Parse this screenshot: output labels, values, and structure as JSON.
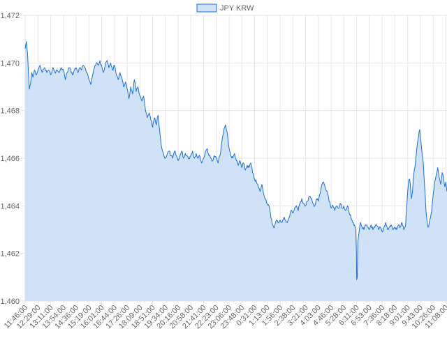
{
  "chart_data": {
    "type": "area",
    "series": [
      {
        "name": "JPY KRW",
        "fill_color": "#cfe2f6",
        "line_color": "#1e6fd0",
        "anchors": [
          [
            "11:46:00",
            1470.6
          ],
          [
            "11:50:00",
            1470.9
          ],
          [
            "11:54:00",
            1470.4
          ],
          [
            "11:57:00",
            1469.6
          ],
          [
            "12:00:00",
            1468.9
          ],
          [
            "12:04:00",
            1469.1
          ],
          [
            "12:08:00",
            1469.6
          ],
          [
            "12:12:00",
            1469.4
          ],
          [
            "12:17:00",
            1469.7
          ],
          [
            "12:22:00",
            1469.5
          ],
          [
            "12:29:00",
            1469.7
          ],
          [
            "12:36:00",
            1469.9
          ],
          [
            "12:43:00",
            1469.6
          ],
          [
            "12:50:00",
            1469.8
          ],
          [
            "12:58:00",
            1469.6
          ],
          [
            "13:04:00",
            1469.7
          ],
          [
            "13:11:00",
            1469.5
          ],
          [
            "13:18:00",
            1469.8
          ],
          [
            "13:25:00",
            1469.6
          ],
          [
            "13:32:00",
            1469.7
          ],
          [
            "13:40:00",
            1469.6
          ],
          [
            "13:47:00",
            1469.8
          ],
          [
            "13:54:00",
            1469.7
          ],
          [
            "14:00:00",
            1469.3
          ],
          [
            "14:06:00",
            1469.6
          ],
          [
            "14:12:00",
            1469.8
          ],
          [
            "14:18:00",
            1469.7
          ],
          [
            "14:24:00",
            1469.5
          ],
          [
            "14:30:00",
            1469.7
          ],
          [
            "14:36:00",
            1469.8
          ],
          [
            "14:42:00",
            1469.6
          ],
          [
            "14:48:00",
            1469.8
          ],
          [
            "14:54:00",
            1469.7
          ],
          [
            "15:00:00",
            1469.9
          ],
          [
            "15:06:00",
            1469.8
          ],
          [
            "15:12:00",
            1469.6
          ],
          [
            "15:19:00",
            1469.3
          ],
          [
            "15:25:00",
            1469.1
          ],
          [
            "15:31:00",
            1469.5
          ],
          [
            "15:37:00",
            1469.8
          ],
          [
            "15:43:00",
            1470.0
          ],
          [
            "15:49:00",
            1469.9
          ],
          [
            "15:55:00",
            1470.1
          ],
          [
            "16:01:00",
            1469.9
          ],
          [
            "16:07:00",
            1469.6
          ],
          [
            "16:13:00",
            1469.9
          ],
          [
            "16:19:00",
            1470.1
          ],
          [
            "16:25:00",
            1469.8
          ],
          [
            "16:31:00",
            1470.0
          ],
          [
            "16:37:00",
            1469.7
          ],
          [
            "16:44:00",
            1469.9
          ],
          [
            "16:50:00",
            1469.5
          ],
          [
            "16:56:00",
            1469.3
          ],
          [
            "17:02:00",
            1469.6
          ],
          [
            "17:08:00",
            1469.4
          ],
          [
            "17:14:00",
            1469.0
          ],
          [
            "17:20:00",
            1469.2
          ],
          [
            "17:26:00",
            1468.9
          ],
          [
            "17:32:00",
            1468.5
          ],
          [
            "17:38:00",
            1469.0
          ],
          [
            "17:44:00",
            1468.7
          ],
          [
            "17:50:00",
            1469.3
          ],
          [
            "17:56:00",
            1468.8
          ],
          [
            "18:02:00",
            1469.0
          ],
          [
            "18:09:00",
            1468.6
          ],
          [
            "18:15:00",
            1468.4
          ],
          [
            "18:21:00",
            1468.6
          ],
          [
            "18:27:00",
            1468.0
          ],
          [
            "18:33:00",
            1467.7
          ],
          [
            "18:39:00",
            1467.9
          ],
          [
            "18:45:00",
            1467.6
          ],
          [
            "18:51:00",
            1467.3
          ],
          [
            "18:57:00",
            1467.7
          ],
          [
            "19:03:00",
            1467.4
          ],
          [
            "19:09:00",
            1467.8
          ],
          [
            "19:14:00",
            1467.2
          ],
          [
            "19:19:00",
            1466.6
          ],
          [
            "19:24:00",
            1466.3
          ],
          [
            "19:29:00",
            1466.1
          ],
          [
            "19:34:00",
            1466.0
          ],
          [
            "19:40:00",
            1466.2
          ],
          [
            "19:46:00",
            1466.3
          ],
          [
            "19:52:00",
            1466.1
          ],
          [
            "19:58:00",
            1466.0
          ],
          [
            "20:04:00",
            1466.3
          ],
          [
            "20:10:00",
            1466.1
          ],
          [
            "20:16:00",
            1465.9
          ],
          [
            "20:22:00",
            1466.1
          ],
          [
            "20:28:00",
            1466.3
          ],
          [
            "20:34:00",
            1466.0
          ],
          [
            "20:40:00",
            1466.2
          ],
          [
            "20:46:00",
            1466.1
          ],
          [
            "20:52:00",
            1466.0
          ],
          [
            "20:58:00",
            1466.1
          ],
          [
            "21:04:00",
            1466.3
          ],
          [
            "21:10:00",
            1466.0
          ],
          [
            "21:16:00",
            1466.2
          ],
          [
            "21:22:00",
            1466.0
          ],
          [
            "21:28:00",
            1466.1
          ],
          [
            "21:34:00",
            1465.8
          ],
          [
            "21:41:00",
            1466.0
          ],
          [
            "21:47:00",
            1466.3
          ],
          [
            "21:53:00",
            1466.4
          ],
          [
            "21:59:00",
            1466.1
          ],
          [
            "22:05:00",
            1466.0
          ],
          [
            "22:11:00",
            1465.9
          ],
          [
            "22:17:00",
            1466.1
          ],
          [
            "22:23:00",
            1466.0
          ],
          [
            "22:29:00",
            1465.8
          ],
          [
            "22:35:00",
            1466.1
          ],
          [
            "22:41:00",
            1466.6
          ],
          [
            "22:47:00",
            1467.1
          ],
          [
            "22:53:00",
            1467.4
          ],
          [
            "22:59:00",
            1467.1
          ],
          [
            "23:06:00",
            1466.4
          ],
          [
            "23:12:00",
            1466.1
          ],
          [
            "23:18:00",
            1466.0
          ],
          [
            "23:24:00",
            1466.2
          ],
          [
            "23:30:00",
            1465.9
          ],
          [
            "23:36:00",
            1465.7
          ],
          [
            "23:42:00",
            1465.9
          ],
          [
            "23:48:00",
            1465.6
          ],
          [
            "23:54:00",
            1465.8
          ],
          [
            "0:00:00",
            1465.5
          ],
          [
            "0:06:00",
            1465.7
          ],
          [
            "0:12:00",
            1465.6
          ],
          [
            "0:18:00",
            1465.8
          ],
          [
            "0:24:00",
            1465.4
          ],
          [
            "0:31:00",
            1465.1
          ],
          [
            "0:37:00",
            1465.0
          ],
          [
            "0:43:00",
            1464.8
          ],
          [
            "0:49:00",
            1464.6
          ],
          [
            "0:55:00",
            1464.9
          ],
          [
            "1:01:00",
            1464.5
          ],
          [
            "1:07:00",
            1464.3
          ],
          [
            "1:13:00",
            1464.1
          ],
          [
            "1:19:00",
            1464.0
          ],
          [
            "1:25:00",
            1463.5
          ],
          [
            "1:31:00",
            1463.2
          ],
          [
            "1:37:00",
            1463.1
          ],
          [
            "1:43:00",
            1463.4
          ],
          [
            "1:49:00",
            1463.3
          ],
          [
            "1:56:00",
            1463.4
          ],
          [
            "2:02:00",
            1463.3
          ],
          [
            "2:08:00",
            1463.5
          ],
          [
            "2:14:00",
            1463.4
          ],
          [
            "2:20:00",
            1463.3
          ],
          [
            "2:26:00",
            1463.5
          ],
          [
            "2:32:00",
            1463.8
          ],
          [
            "2:38:00",
            1463.7
          ],
          [
            "2:44:00",
            1463.9
          ],
          [
            "2:50:00",
            1464.0
          ],
          [
            "2:56:00",
            1463.8
          ],
          [
            "3:02:00",
            1464.1
          ],
          [
            "3:08:00",
            1464.3
          ],
          [
            "3:14:00",
            1464.1
          ],
          [
            "3:21:00",
            1464.0
          ],
          [
            "3:27:00",
            1464.2
          ],
          [
            "3:33:00",
            1464.4
          ],
          [
            "3:39:00",
            1464.3
          ],
          [
            "3:45:00",
            1464.1
          ],
          [
            "3:51:00",
            1464.0
          ],
          [
            "3:57:00",
            1464.3
          ],
          [
            "4:03:00",
            1464.2
          ],
          [
            "4:09:00",
            1464.5
          ],
          [
            "4:15:00",
            1464.9
          ],
          [
            "4:21:00",
            1465.0
          ],
          [
            "4:27:00",
            1464.7
          ],
          [
            "4:33:00",
            1464.6
          ],
          [
            "4:39:00",
            1464.2
          ],
          [
            "4:46:00",
            1463.9
          ],
          [
            "4:52:00",
            1464.0
          ],
          [
            "4:58:00",
            1463.8
          ],
          [
            "5:04:00",
            1464.0
          ],
          [
            "5:10:00",
            1463.9
          ],
          [
            "5:16:00",
            1464.1
          ],
          [
            "5:22:00",
            1463.9
          ],
          [
            "5:28:00",
            1464.0
          ],
          [
            "5:34:00",
            1463.8
          ],
          [
            "5:40:00",
            1464.0
          ],
          [
            "5:46:00",
            1463.7
          ],
          [
            "5:52:00",
            1463.5
          ],
          [
            "5:58:00",
            1463.3
          ],
          [
            "6:04:00",
            1463.2
          ],
          [
            "6:08:00",
            1463.0
          ],
          [
            "6:10:00",
            1462.1
          ],
          [
            "6:11:00",
            1460.9
          ],
          [
            "6:13:00",
            1461.0
          ],
          [
            "6:15:00",
            1462.5
          ],
          [
            "6:17:00",
            1462.7
          ],
          [
            "6:20:00",
            1463.0
          ],
          [
            "6:24:00",
            1463.3
          ],
          [
            "6:29:00",
            1463.1
          ],
          [
            "6:35:00",
            1463.0
          ],
          [
            "6:41:00",
            1463.2
          ],
          [
            "6:47:00",
            1463.1
          ],
          [
            "6:53:00",
            1463.0
          ],
          [
            "6:59:00",
            1463.2
          ],
          [
            "7:05:00",
            1463.0
          ],
          [
            "7:11:00",
            1463.1
          ],
          [
            "7:17:00",
            1463.2
          ],
          [
            "7:24:00",
            1463.0
          ],
          [
            "7:30:00",
            1463.1
          ],
          [
            "7:36:00",
            1462.9
          ],
          [
            "7:42:00",
            1463.1
          ],
          [
            "7:48:00",
            1463.3
          ],
          [
            "7:54:00",
            1463.0
          ],
          [
            "8:00:00",
            1463.1
          ],
          [
            "8:06:00",
            1463.2
          ],
          [
            "8:12:00",
            1463.0
          ],
          [
            "8:18:00",
            1463.1
          ],
          [
            "8:24:00",
            1463.0
          ],
          [
            "8:30:00",
            1463.2
          ],
          [
            "8:36:00",
            1463.1
          ],
          [
            "8:42:00",
            1463.3
          ],
          [
            "8:48:00",
            1463.0
          ],
          [
            "8:54:00",
            1463.2
          ],
          [
            "9:01:00",
            1464.6
          ],
          [
            "9:05:00",
            1465.1
          ],
          [
            "9:09:00",
            1465.0
          ],
          [
            "9:13:00",
            1464.3
          ],
          [
            "9:17:00",
            1464.6
          ],
          [
            "9:21:00",
            1465.3
          ],
          [
            "9:25:00",
            1465.6
          ],
          [
            "9:29:00",
            1466.1
          ],
          [
            "9:33:00",
            1466.6
          ],
          [
            "9:37:00",
            1466.9
          ],
          [
            "9:41:00",
            1467.2
          ],
          [
            "9:45:00",
            1466.7
          ],
          [
            "9:49:00",
            1466.2
          ],
          [
            "9:53:00",
            1465.8
          ],
          [
            "9:57:00",
            1464.9
          ],
          [
            "10:01:00",
            1464.0
          ],
          [
            "10:05:00",
            1463.4
          ],
          [
            "10:09:00",
            1463.1
          ],
          [
            "10:13:00",
            1463.3
          ],
          [
            "10:17:00",
            1463.5
          ],
          [
            "10:21:00",
            1463.8
          ],
          [
            "10:26:00",
            1464.5
          ],
          [
            "10:31:00",
            1465.0
          ],
          [
            "10:36:00",
            1465.3
          ],
          [
            "10:41:00",
            1465.6
          ],
          [
            "10:46:00",
            1465.2
          ],
          [
            "10:51:00",
            1464.9
          ],
          [
            "10:56:00",
            1465.4
          ],
          [
            "11:01:00",
            1465.1
          ],
          [
            "11:05:00",
            1464.8
          ],
          [
            "11:08:00",
            1465.0
          ],
          [
            "11:12:00",
            1464.6
          ]
        ]
      }
    ],
    "xlabel": "",
    "ylabel": "",
    "ylim": [
      1460,
      1472
    ],
    "yticks": [
      1460,
      1462,
      1464,
      1466,
      1468,
      1470,
      1472
    ],
    "ytick_labels": [
      "1,460",
      "1,462",
      "1,464",
      "1,466",
      "1,468",
      "1,470",
      "1,472"
    ],
    "xtick_labels": [
      "11:46:00",
      "12:29:00",
      "13:11:00",
      "13:54:00",
      "14:36:00",
      "15:19:00",
      "16:01:00",
      "16:44:00",
      "17:26:00",
      "18:09:00",
      "18:51:00",
      "19:34:00",
      "20:16:00",
      "20:58:00",
      "21:41:00",
      "22:23:00",
      "23:06:00",
      "23:48:00",
      "0:31:00",
      "1:13:00",
      "1:56:00",
      "2:38:00",
      "3:21:00",
      "4:03:00",
      "4:46:00",
      "5:28:00",
      "6:11:00",
      "6:53:00",
      "7:36:00",
      "8:18:00",
      "9:01:00",
      "9:43:00",
      "10:26:00",
      "11:08:00"
    ],
    "x_start": "11:46:00",
    "x_end": "11:12:00",
    "grid": true,
    "legend": "top-center"
  }
}
